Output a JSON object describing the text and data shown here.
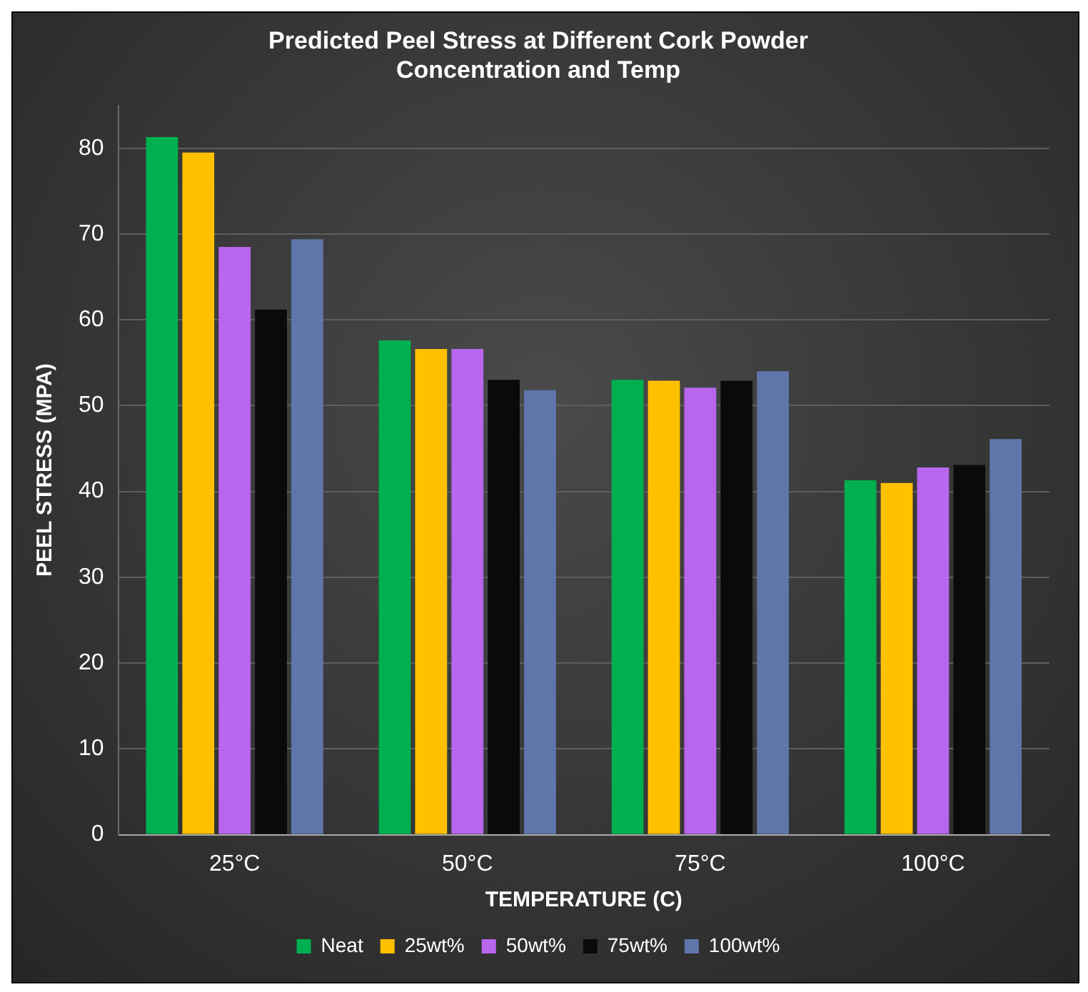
{
  "chart_data": {
    "type": "bar",
    "title": "Predicted Peel Stress at Different Cork Powder Concentration and Temp",
    "xlabel": "TEMPERATURE (C)",
    "ylabel": "PEEL STRESS (MPA)",
    "categories": [
      "25°C",
      "50°C",
      "75°C",
      "100°C"
    ],
    "series": [
      {
        "name": "Neat",
        "color": "#00b050",
        "values": [
          81.3,
          57.6,
          53,
          41.3
        ]
      },
      {
        "name": "25wt%",
        "color": "#ffc000",
        "values": [
          79.5,
          56.6,
          52.9,
          41
        ]
      },
      {
        "name": "50wt%",
        "color": "#b866ee",
        "values": [
          68.5,
          56.6,
          52.1,
          42.8
        ]
      },
      {
        "name": "75wt%",
        "color": "#0a0a0a",
        "values": [
          61.2,
          53,
          52.9,
          43.1
        ]
      },
      {
        "name": "100wt%",
        "color": "#5f76aa",
        "values": [
          69.4,
          51.8,
          54,
          46.1
        ]
      }
    ],
    "ylim": [
      0,
      85
    ],
    "yticks": [
      0,
      10,
      20,
      30,
      40,
      50,
      60,
      70,
      80
    ],
    "grid": "y",
    "legend": "bottom"
  }
}
